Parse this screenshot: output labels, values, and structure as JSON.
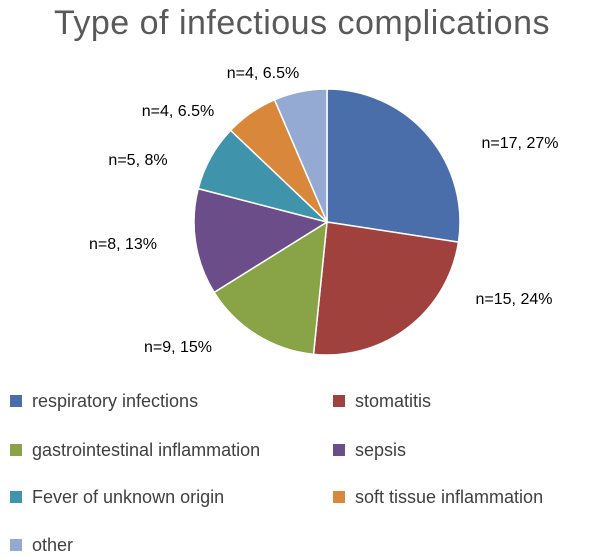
{
  "chart_data": {
    "type": "pie",
    "title": "Type of infectious complications",
    "slices": [
      {
        "label": "respiratory infections",
        "n": 17,
        "percent": 27,
        "data_label": "n=17, 27%",
        "color": "#4A6EA9"
      },
      {
        "label": "stomatitis",
        "n": 15,
        "percent": 24,
        "data_label": "n=15, 24%",
        "color": "#A0413E"
      },
      {
        "label": "gastrointestinal inflammation",
        "n": 9,
        "percent": 15,
        "data_label": "n=9, 15%",
        "color": "#88A447"
      },
      {
        "label": "sepsis",
        "n": 8,
        "percent": 13,
        "data_label": "n=8, 13%",
        "color": "#6B4D8A"
      },
      {
        "label": "Fever of unknown origin",
        "n": 5,
        "percent": 8,
        "data_label": "n=5, 8%",
        "color": "#3F93AB"
      },
      {
        "label": "soft tissue inflammation",
        "n": 4,
        "percent": 6.5,
        "data_label": "n=4, 6.5%",
        "color": "#D9873A"
      },
      {
        "label": "other",
        "n": 4,
        "percent": 6.5,
        "data_label": "n=4, 6.5%",
        "color": "#95AAD3"
      }
    ],
    "legend_position": "bottom"
  }
}
